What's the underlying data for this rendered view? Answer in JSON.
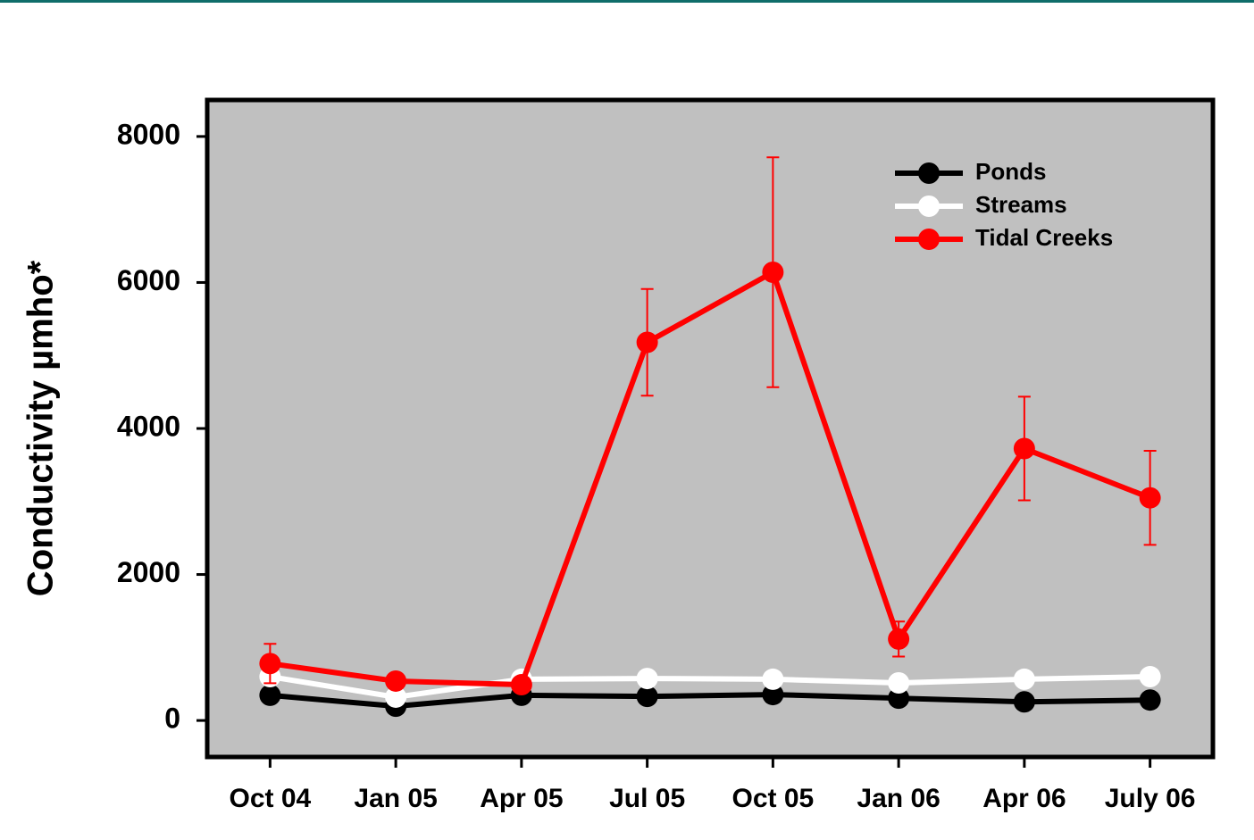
{
  "chart_data": {
    "type": "line",
    "y_label": "Conductivity µmho*",
    "categories": [
      "Oct 04",
      "Jan 05",
      "Apr 05",
      "Jul 05",
      "Oct 05",
      "Jan 06",
      "Apr 06",
      "July 06"
    ],
    "series": [
      {
        "name": "Ponds",
        "color": "#000000",
        "values": [
          345,
          195,
          345,
          330,
          355,
          305,
          255,
          280
        ]
      },
      {
        "name": "Streams",
        "color": "#ffffff",
        "values": [
          600,
          320,
          565,
          575,
          565,
          515,
          565,
          600
        ]
      },
      {
        "name": "Tidal Creeks",
        "color": "#ff0000",
        "values": [
          780,
          540,
          490,
          5180,
          6140,
          1115,
          3725,
          3050
        ],
        "errors": [
          270,
          null,
          null,
          730,
          1575,
          240,
          710,
          645
        ]
      }
    ],
    "ylim": [
      -500,
      8500
    ],
    "yticks": [
      0,
      2000,
      4000,
      6000,
      8000
    ],
    "plot_background": "#c0c0c0",
    "legend": "upper right"
  }
}
